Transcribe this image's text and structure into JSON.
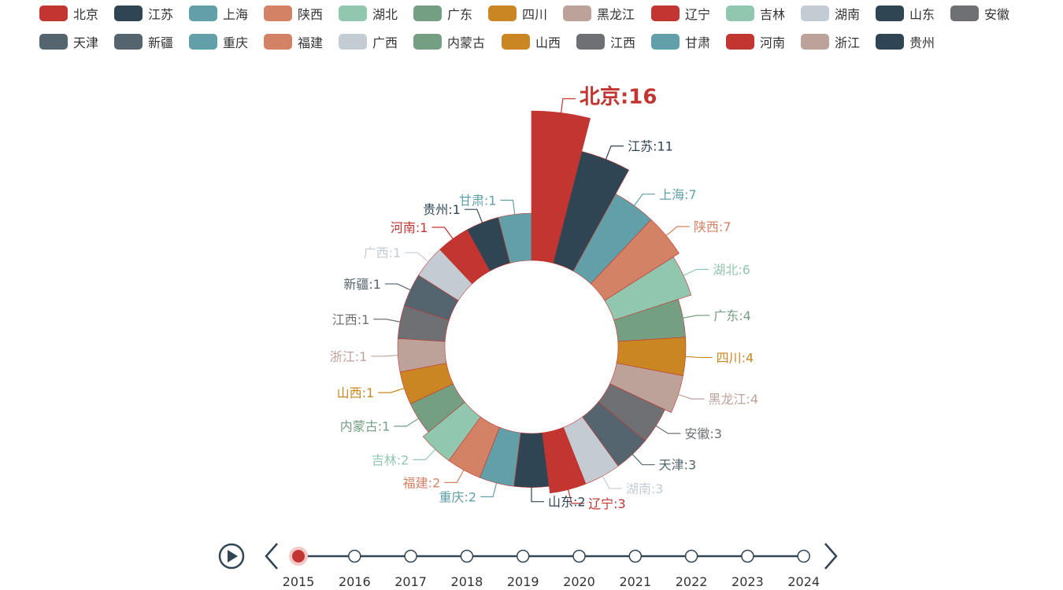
{
  "chart_data": {
    "type": "pie",
    "variant": "rose-donut",
    "title": "",
    "slices": [
      {
        "name": "北京",
        "value": 16,
        "color": "#c23531",
        "label": "北京:16"
      },
      {
        "name": "江苏",
        "value": 11,
        "color": "#2f4554",
        "label": "江苏:11"
      },
      {
        "name": "上海",
        "value": 7,
        "color": "#61a0a8",
        "label": "上海:7"
      },
      {
        "name": "陕西",
        "value": 7,
        "color": "#d48265",
        "label": "陕西:7"
      },
      {
        "name": "湖北",
        "value": 6,
        "color": "#91c7ae",
        "label": "湖北:6"
      },
      {
        "name": "广东",
        "value": 4,
        "color": "#749f83",
        "label": "广东:4"
      },
      {
        "name": "四川",
        "value": 4,
        "color": "#ca8622",
        "label": "四川:4"
      },
      {
        "name": "黑龙江",
        "value": 4,
        "color": "#bda29a",
        "label": "黑龙江:4"
      },
      {
        "name": "安徽",
        "value": 3,
        "color": "#6e7074",
        "label": "安徽:3"
      },
      {
        "name": "天津",
        "value": 3,
        "color": "#546570",
        "label": "天津:3"
      },
      {
        "name": "湖南",
        "value": 3,
        "color": "#c4ccd3",
        "label": "湖南:3"
      },
      {
        "name": "辽宁",
        "value": 3,
        "color": "#c23531",
        "label": "辽宁:3"
      },
      {
        "name": "山东",
        "value": 2,
        "color": "#2f4554",
        "label": "山东:2"
      },
      {
        "name": "重庆",
        "value": 2,
        "color": "#61a0a8",
        "label": "重庆:2"
      },
      {
        "name": "福建",
        "value": 2,
        "color": "#d48265",
        "label": "福建:2"
      },
      {
        "name": "吉林",
        "value": 2,
        "color": "#91c7ae",
        "label": "吉林:2"
      },
      {
        "name": "内蒙古",
        "value": 1,
        "color": "#749f83",
        "label": "内蒙古:1"
      },
      {
        "name": "山西",
        "value": 1,
        "color": "#ca8622",
        "label": "山西:1"
      },
      {
        "name": "浙江",
        "value": 1,
        "color": "#bda29a",
        "label": "浙江:1"
      },
      {
        "name": "江西",
        "value": 1,
        "color": "#6e7074",
        "label": "江西:1"
      },
      {
        "name": "新疆",
        "value": 1,
        "color": "#546570",
        "label": "新疆:1"
      },
      {
        "name": "广西",
        "value": 1,
        "color": "#c4ccd3",
        "label": "广西:1"
      },
      {
        "name": "河南",
        "value": 1,
        "color": "#c23531",
        "label": "河南:1"
      },
      {
        "name": "贵州",
        "value": 1,
        "color": "#2f4554",
        "label": "贵州:1"
      },
      {
        "name": "甘肃",
        "value": 1,
        "color": "#61a0a8",
        "label": "甘肃:1"
      }
    ],
    "highlighted": "北京",
    "legend": {
      "placement": "top",
      "items": [
        {
          "name": "北京",
          "color": "#c23531"
        },
        {
          "name": "江苏",
          "color": "#2f4554"
        },
        {
          "name": "上海",
          "color": "#61a0a8"
        },
        {
          "name": "陕西",
          "color": "#d48265"
        },
        {
          "name": "湖北",
          "color": "#91c7ae"
        },
        {
          "name": "广东",
          "color": "#749f83"
        },
        {
          "name": "四川",
          "color": "#ca8622"
        },
        {
          "name": "黑龙江",
          "color": "#bda29a"
        },
        {
          "name": "辽宁",
          "color": "#c23531"
        },
        {
          "name": "吉林",
          "color": "#91c7ae"
        },
        {
          "name": "湖南",
          "color": "#c4ccd3"
        },
        {
          "name": "山东",
          "color": "#2f4554"
        },
        {
          "name": "安徽",
          "color": "#6e7074"
        },
        {
          "name": "天津",
          "color": "#546570"
        },
        {
          "name": "新疆",
          "color": "#546570"
        },
        {
          "name": "重庆",
          "color": "#61a0a8"
        },
        {
          "name": "福建",
          "color": "#d48265"
        },
        {
          "name": "广西",
          "color": "#c4ccd3"
        },
        {
          "name": "内蒙古",
          "color": "#749f83"
        },
        {
          "name": "山西",
          "color": "#ca8622"
        },
        {
          "name": "江西",
          "color": "#6e7074"
        },
        {
          "name": "甘肃",
          "color": "#61a0a8"
        },
        {
          "name": "河南",
          "color": "#c23531"
        },
        {
          "name": "浙江",
          "color": "#bda29a"
        },
        {
          "name": "贵州",
          "color": "#2f4554"
        }
      ]
    }
  },
  "timeline": {
    "years": [
      "2015",
      "2016",
      "2017",
      "2018",
      "2019",
      "2020",
      "2021",
      "2022",
      "2023",
      "2024"
    ],
    "current": "2015",
    "accent_color": "#c23531",
    "axis_color": "#304654"
  },
  "controls": {
    "play_icon": "play-icon",
    "prev_icon": "chevron-left-icon",
    "next_icon": "chevron-right-icon"
  }
}
